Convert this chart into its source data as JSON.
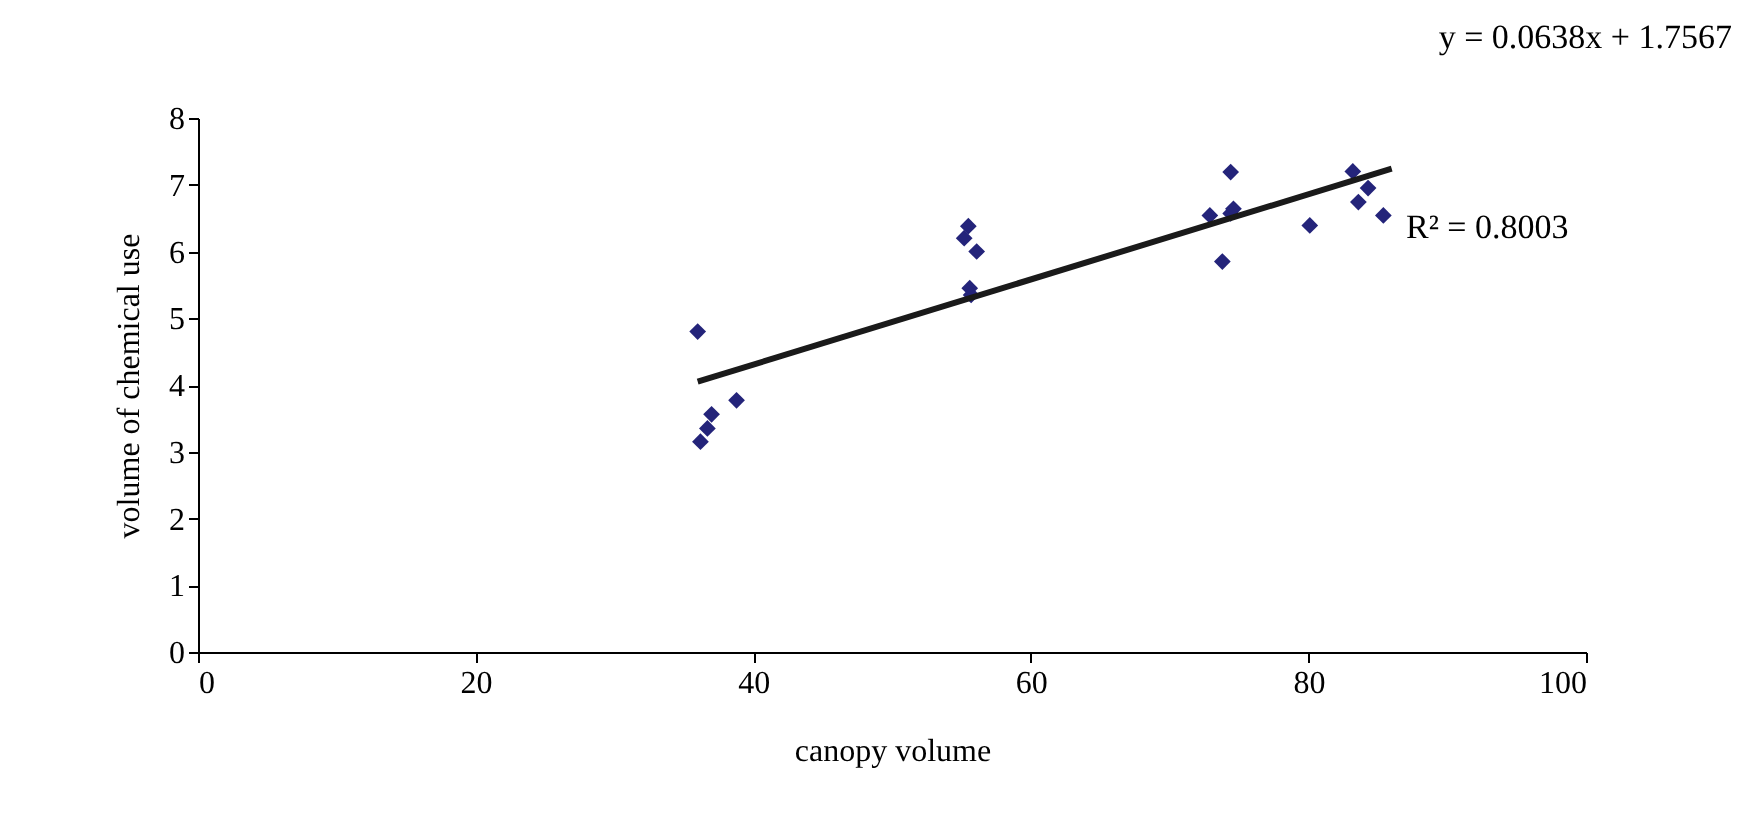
{
  "chart_data": {
    "type": "scatter",
    "xlabel": "canopy volume",
    "ylabel": "volume of chemical use",
    "xlim": [
      0,
      100
    ],
    "xticks": [
      0,
      20,
      40,
      60,
      80,
      100
    ],
    "ylim": [
      0,
      8
    ],
    "yticks": [
      0,
      1,
      2,
      3,
      4,
      5,
      6,
      7,
      8
    ],
    "grid": false,
    "marker": "diamond",
    "annotations": [
      "y = 0.0638x + 1.7567",
      "R² = 0.8003"
    ],
    "series": [
      {
        "color": "#24247a",
        "x": [
          36.0,
          36.2,
          36.7,
          37.0,
          38.8,
          55.5,
          55.2,
          56.1,
          55.6,
          55.7,
          74.4,
          72.9,
          74.4,
          74.6,
          73.8,
          80.1,
          83.2,
          84.3,
          83.6,
          85.4
        ],
        "values": [
          4.8,
          3.15,
          3.35,
          3.56,
          3.77,
          6.38,
          6.2,
          6.0,
          5.45,
          5.35,
          7.19,
          6.54,
          6.57,
          6.64,
          5.85,
          6.39,
          7.2,
          6.95,
          6.74,
          6.54
        ]
      },
      {
        "type": "line",
        "color": "#1a1a1a",
        "line_style": "solid",
        "marker": "none",
        "x": [
          36,
          86
        ],
        "values": [
          4.05,
          7.24
        ]
      }
    ]
  }
}
